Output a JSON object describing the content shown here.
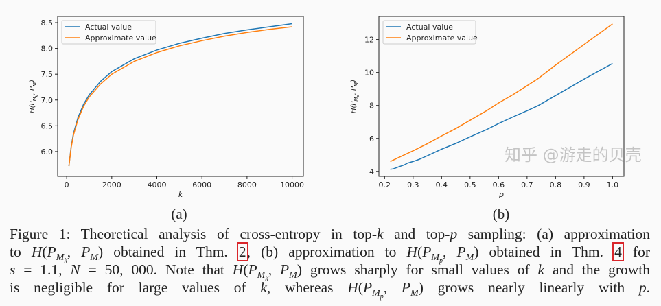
{
  "colors": {
    "actual": "#1f77b4",
    "approximate": "#ff7f0e",
    "reference_box": "#d9262b"
  },
  "chart_data": [
    {
      "type": "line",
      "panel_label": "(a)",
      "xlabel": "k",
      "ylabel": "H(P_{M_k}, P_M)",
      "xlim": [
        -400,
        10500
      ],
      "ylim": [
        5.52,
        8.62
      ],
      "xticks": [
        0,
        2000,
        4000,
        6000,
        8000,
        10000
      ],
      "xtick_labels": [
        "0",
        "2000",
        "4000",
        "6000",
        "8000",
        "10000"
      ],
      "yticks": [
        6.0,
        6.5,
        7.0,
        7.5,
        8.0,
        8.5
      ],
      "ytick_labels": [
        "6.0",
        "6.5",
        "7.0",
        "7.5",
        "8.0",
        "8.5"
      ],
      "legend": "top-left",
      "grid": false,
      "series": [
        {
          "name": "Actual value",
          "x": [
            100,
            200,
            300,
            500,
            750,
            1000,
            1500,
            2000,
            3000,
            4000,
            5000,
            6000,
            7000,
            8000,
            9000,
            10000
          ],
          "y": [
            5.72,
            6.1,
            6.35,
            6.66,
            6.92,
            7.1,
            7.36,
            7.55,
            7.8,
            7.97,
            8.1,
            8.2,
            8.29,
            8.36,
            8.42,
            8.48
          ]
        },
        {
          "name": "Approximate value",
          "x": [
            100,
            200,
            300,
            500,
            750,
            1000,
            1500,
            2000,
            3000,
            4000,
            5000,
            6000,
            7000,
            8000,
            9000,
            10000
          ],
          "y": [
            5.72,
            6.08,
            6.32,
            6.62,
            6.88,
            7.06,
            7.31,
            7.5,
            7.75,
            7.92,
            8.05,
            8.15,
            8.24,
            8.31,
            8.37,
            8.42
          ]
        }
      ]
    },
    {
      "type": "line",
      "panel_label": "(b)",
      "xlabel": "p",
      "ylabel": "H(P_{M_p}, P_M)",
      "xlim": [
        0.18,
        1.04
      ],
      "ylim": [
        3.7,
        13.4
      ],
      "xticks": [
        0.2,
        0.3,
        0.4,
        0.5,
        0.6,
        0.7,
        0.8,
        0.9,
        1.0
      ],
      "xtick_labels": [
        "0.2",
        "0.3",
        "0.4",
        "0.5",
        "0.6",
        "0.7",
        "0.8",
        "0.9",
        "1.0"
      ],
      "yticks": [
        4,
        6,
        8,
        10,
        12
      ],
      "ytick_labels": [
        "4",
        "6",
        "8",
        "10",
        "12"
      ],
      "legend": "top-left",
      "grid": false,
      "series": [
        {
          "name": "Actual value",
          "x": [
            0.22,
            0.23,
            0.25,
            0.27,
            0.28,
            0.3,
            0.32,
            0.35,
            0.4,
            0.45,
            0.5,
            0.56,
            0.6,
            0.65,
            0.7,
            0.74,
            0.8,
            0.9,
            1.0
          ],
          "y": [
            4.13,
            4.15,
            4.28,
            4.4,
            4.5,
            4.6,
            4.72,
            4.95,
            5.35,
            5.7,
            6.1,
            6.55,
            6.9,
            7.3,
            7.68,
            8.0,
            8.6,
            9.6,
            10.55
          ]
        },
        {
          "name": "Approximate value",
          "x": [
            0.22,
            0.25,
            0.3,
            0.35,
            0.4,
            0.45,
            0.5,
            0.56,
            0.6,
            0.65,
            0.7,
            0.74,
            0.8,
            0.9,
            1.0
          ],
          "y": [
            4.6,
            4.85,
            5.25,
            5.68,
            6.15,
            6.6,
            7.1,
            7.7,
            8.15,
            8.65,
            9.2,
            9.65,
            10.45,
            11.7,
            12.95
          ]
        }
      ]
    }
  ],
  "caption": {
    "lines": [
      [
        {
          "t": "Figure 1: Theoretical analysis of cross-entropy in top-",
          "s": "n"
        },
        {
          "t": "k",
          "s": "i"
        },
        {
          "t": " and top-",
          "s": "n"
        },
        {
          "t": "p",
          "s": "i"
        },
        {
          "t": " sampling: (a) approximation",
          "s": "n"
        }
      ],
      [
        {
          "t": "to ",
          "s": "n"
        },
        {
          "t": "H",
          "s": "i"
        },
        {
          "t": "(",
          "s": "n"
        },
        {
          "t": "P",
          "s": "i"
        },
        {
          "t": "M",
          "s": "sub"
        },
        {
          "t": "k",
          "s": "subsub"
        },
        {
          "t": ", ",
          "s": "n"
        },
        {
          "t": "P",
          "s": "i"
        },
        {
          "t": "M",
          "s": "sub"
        },
        {
          "t": ")",
          "s": "n"
        },
        {
          "t": " obtained in Thm. ",
          "s": "n"
        },
        {
          "t": "2",
          "s": "box"
        },
        {
          "t": ", (b) approximation to ",
          "s": "n"
        },
        {
          "t": "H",
          "s": "i"
        },
        {
          "t": "(",
          "s": "n"
        },
        {
          "t": "P",
          "s": "i"
        },
        {
          "t": "M",
          "s": "sub"
        },
        {
          "t": "p",
          "s": "subsub"
        },
        {
          "t": ", ",
          "s": "n"
        },
        {
          "t": "P",
          "s": "i"
        },
        {
          "t": "M",
          "s": "sub"
        },
        {
          "t": ")",
          "s": "n"
        },
        {
          "t": " obtained in Thm. ",
          "s": "n"
        },
        {
          "t": "4",
          "s": "box"
        },
        {
          "t": " for",
          "s": "n"
        }
      ],
      [
        {
          "t": "s",
          "s": "i"
        },
        {
          "t": " = 1.1, ",
          "s": "n"
        },
        {
          "t": "N",
          "s": "i"
        },
        {
          "t": " = 50, 000. Note that ",
          "s": "n"
        },
        {
          "t": "H",
          "s": "i"
        },
        {
          "t": "(",
          "s": "n"
        },
        {
          "t": "P",
          "s": "i"
        },
        {
          "t": "M",
          "s": "sub"
        },
        {
          "t": "k",
          "s": "subsub"
        },
        {
          "t": ", ",
          "s": "n"
        },
        {
          "t": "P",
          "s": "i"
        },
        {
          "t": "M",
          "s": "sub"
        },
        {
          "t": ")",
          "s": "n"
        },
        {
          "t": " grows sharply for small values of ",
          "s": "n"
        },
        {
          "t": "k",
          "s": "i"
        },
        {
          "t": " and the growth",
          "s": "n"
        }
      ],
      [
        {
          "t": "is negligible for large values of ",
          "s": "n"
        },
        {
          "t": "k",
          "s": "i"
        },
        {
          "t": ", whereas ",
          "s": "n"
        },
        {
          "t": "H",
          "s": "i"
        },
        {
          "t": "(",
          "s": "n"
        },
        {
          "t": "P",
          "s": "i"
        },
        {
          "t": "M",
          "s": "sub"
        },
        {
          "t": "p",
          "s": "subsub"
        },
        {
          "t": ", ",
          "s": "n"
        },
        {
          "t": "P",
          "s": "i"
        },
        {
          "t": "M",
          "s": "sub"
        },
        {
          "t": ")",
          "s": "n"
        },
        {
          "t": " grows nearly linearly with ",
          "s": "n"
        },
        {
          "t": "p",
          "s": "i"
        },
        {
          "t": ".",
          "s": "n"
        }
      ]
    ]
  },
  "watermark": "知乎 @游走的贝壳"
}
